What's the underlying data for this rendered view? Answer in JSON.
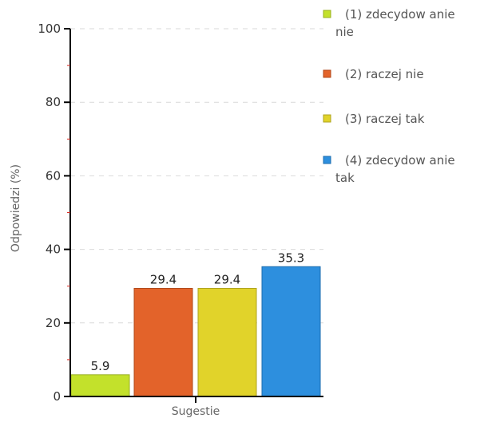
{
  "chart_data": {
    "type": "bar",
    "title": "",
    "xlabel": "Sugestie",
    "ylabel": "Odpowiedzi (%)",
    "ylim": [
      0,
      100
    ],
    "yticks": [
      0,
      20,
      40,
      60,
      80,
      100
    ],
    "ytick_labels": [
      "0",
      "20",
      "40",
      "60",
      "80",
      "100"
    ],
    "grid": "horizontal dashed",
    "legend_position": "right",
    "series": [
      {
        "name": "(1) zdecydowanie nie",
        "legend_lines": [
          "(1) zdecydow anie",
          "nie"
        ],
        "value": 5.9,
        "label": "5.9",
        "color": "#c3e12b",
        "border": "#98b020"
      },
      {
        "name": "(2) raczej nie",
        "legend_lines": [
          "(2) raczej nie"
        ],
        "value": 29.4,
        "label": "29.4",
        "color": "#e3632a",
        "border": "#b14a1b"
      },
      {
        "name": "(3) raczej tak",
        "legend_lines": [
          "(3) raczej tak"
        ],
        "value": 29.4,
        "label": "29.4",
        "color": "#e1d32a",
        "border": "#aea31f"
      },
      {
        "name": "(4) zdecydowanie tak",
        "legend_lines": [
          "(4) zdecydow anie",
          "tak"
        ],
        "value": 35.3,
        "label": "35.3",
        "color": "#2d8fde",
        "border": "#1d6eaf"
      }
    ],
    "colors": {
      "axis": "#000000",
      "grid": "#d9d9d9",
      "minor_tick": "#d8281f"
    }
  }
}
